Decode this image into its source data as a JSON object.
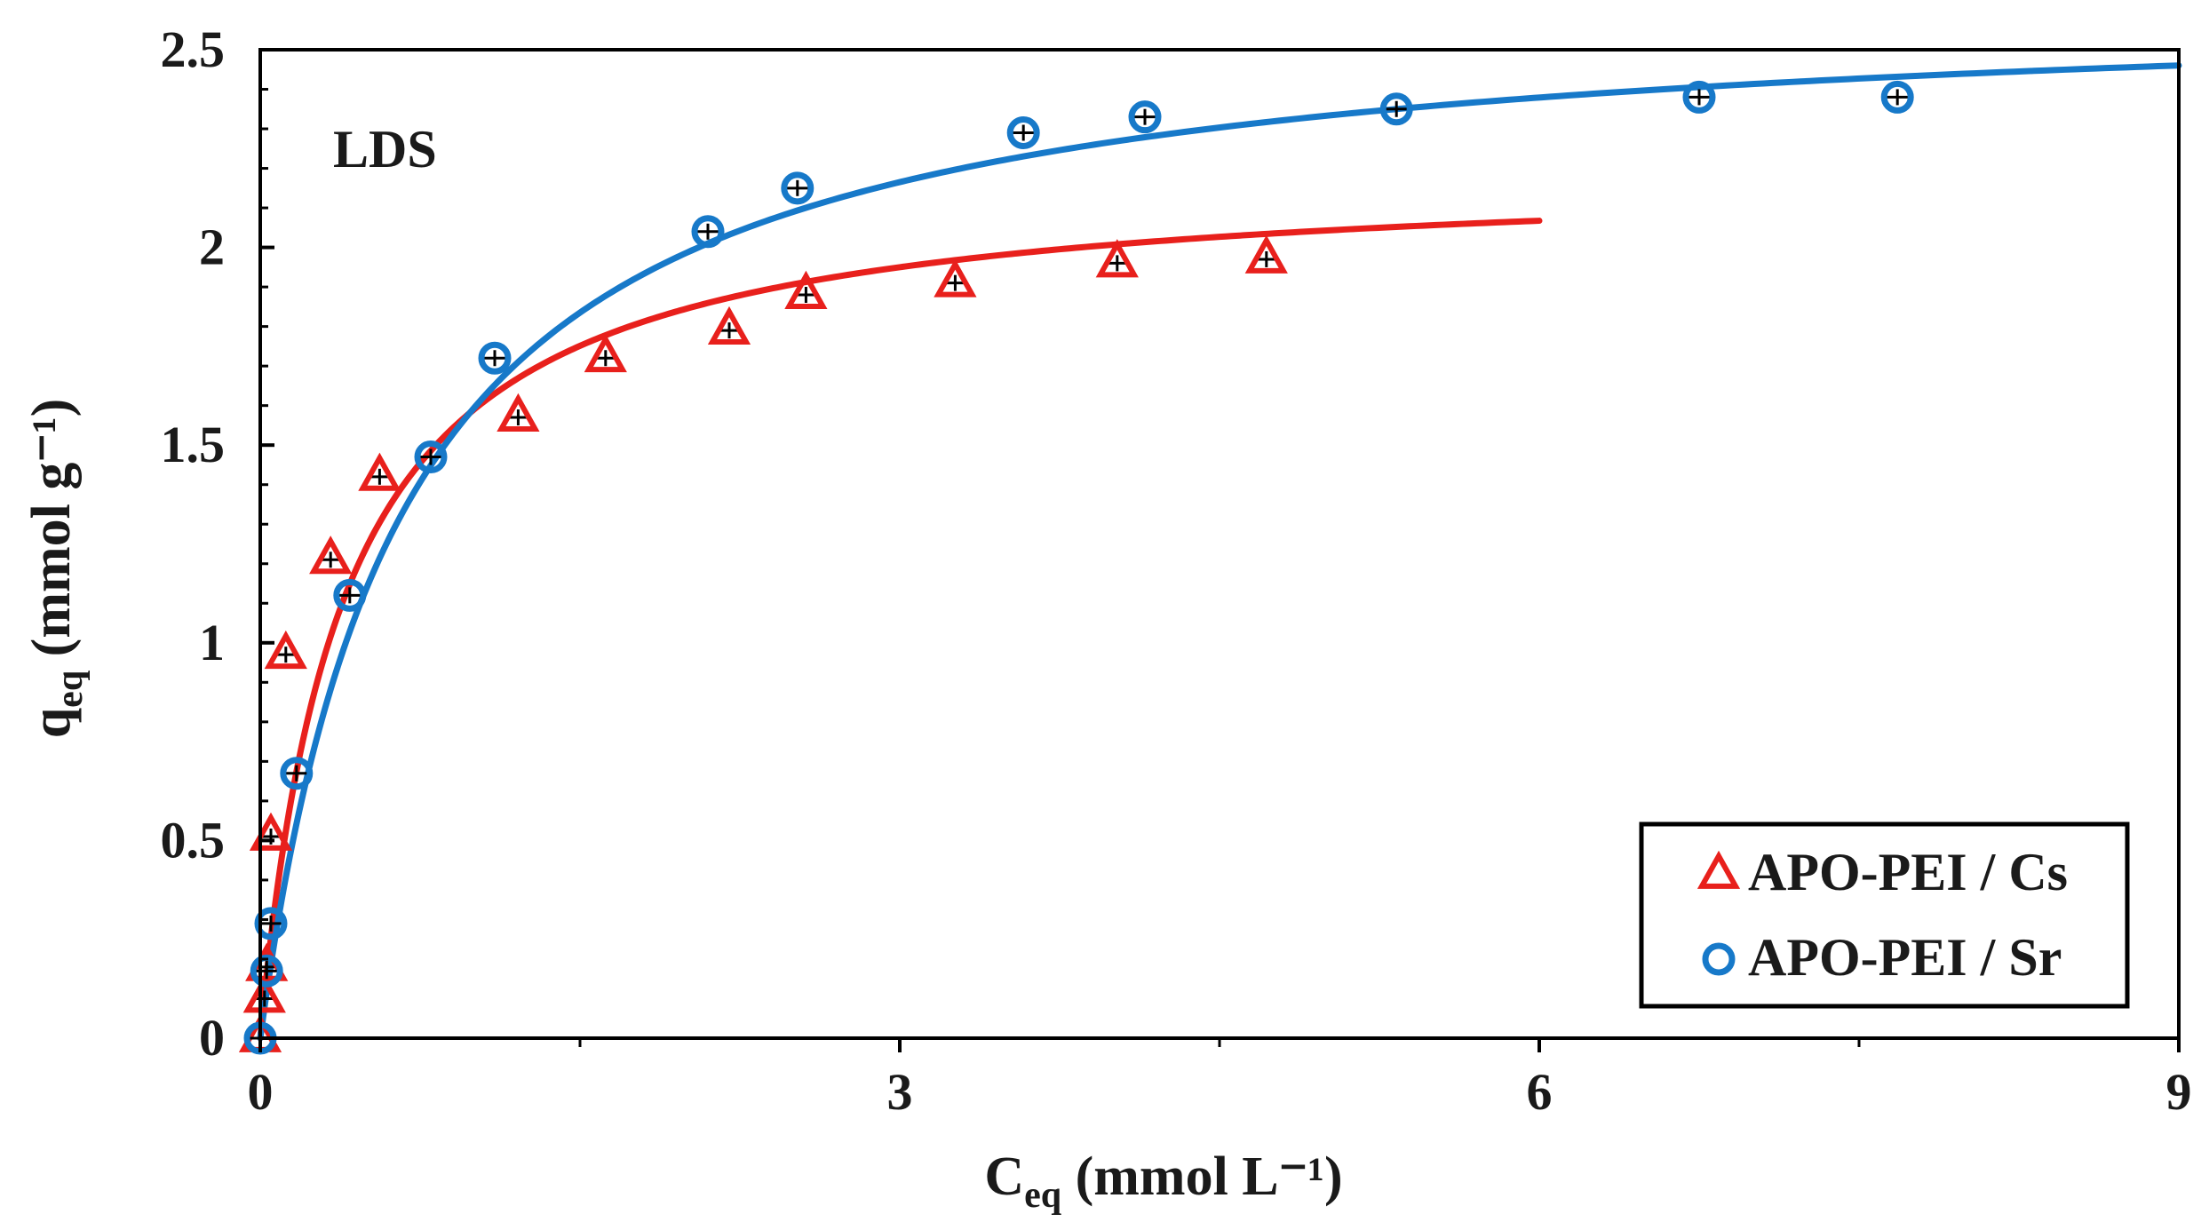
{
  "chart_data": {
    "type": "scatter",
    "annotation": "LDS",
    "xlabel": {
      "main": "C",
      "sub": "eq",
      "rest": " (mmol  L⁻¹)"
    },
    "ylabel": {
      "main": "q",
      "sub": "eq",
      "rest": " (mmol g⁻¹)"
    },
    "xlim": [
      0,
      9
    ],
    "ylim": [
      0,
      2.5
    ],
    "x_ticks": [
      0,
      3,
      6,
      9
    ],
    "x_tick_labels": [
      "0",
      "3",
      "6",
      "9"
    ],
    "x_minor_ticks": [
      1.5,
      4.5,
      7.5
    ],
    "y_ticks": [
      0,
      0.5,
      1,
      1.5,
      2,
      2.5
    ],
    "y_tick_labels": [
      "0",
      "0.5",
      "1",
      "1.5",
      "2",
      "2.5"
    ],
    "y_minor_ticks": [
      0.1,
      0.2,
      0.3,
      0.4,
      0.6,
      0.7,
      0.8,
      0.9,
      1.1,
      1.2,
      1.3,
      1.4,
      1.6,
      1.7,
      1.8,
      1.9,
      2.1,
      2.2,
      2.3,
      2.4
    ],
    "grid": false,
    "legend_position": "bottom-right",
    "series": [
      {
        "name": "APO-PEI / Cs",
        "marker": "triangle",
        "color": "#e8201c",
        "points": [
          {
            "x": 0.0,
            "y": 0.0
          },
          {
            "x": 0.02,
            "y": 0.1
          },
          {
            "x": 0.03,
            "y": 0.18
          },
          {
            "x": 0.05,
            "y": 0.51
          },
          {
            "x": 0.12,
            "y": 0.97
          },
          {
            "x": 0.33,
            "y": 1.21
          },
          {
            "x": 0.56,
            "y": 1.42
          },
          {
            "x": 1.21,
            "y": 1.57
          },
          {
            "x": 1.62,
            "y": 1.72
          },
          {
            "x": 2.2,
            "y": 1.79
          },
          {
            "x": 2.56,
            "y": 1.88
          },
          {
            "x": 3.26,
            "y": 1.91
          },
          {
            "x": 4.02,
            "y": 1.96
          },
          {
            "x": 4.72,
            "y": 1.97
          }
        ],
        "fit": {
          "model": "langmuir",
          "qmax": 2.2,
          "K": 2.6,
          "x_range": [
            0,
            6
          ]
        }
      },
      {
        "name": "APO-PEI / Sr",
        "marker": "circle",
        "color": "#1779c9",
        "points": [
          {
            "x": 0.0,
            "y": 0.0
          },
          {
            "x": 0.03,
            "y": 0.17
          },
          {
            "x": 0.05,
            "y": 0.29
          },
          {
            "x": 0.17,
            "y": 0.67
          },
          {
            "x": 0.42,
            "y": 1.12
          },
          {
            "x": 0.8,
            "y": 1.47
          },
          {
            "x": 1.1,
            "y": 1.72
          },
          {
            "x": 2.1,
            "y": 2.04
          },
          {
            "x": 2.52,
            "y": 2.15
          },
          {
            "x": 3.58,
            "y": 2.29
          },
          {
            "x": 4.15,
            "y": 2.33
          },
          {
            "x": 5.33,
            "y": 2.35
          },
          {
            "x": 6.75,
            "y": 2.38
          },
          {
            "x": 7.68,
            "y": 2.38
          }
        ],
        "fit": {
          "model": "langmuir",
          "qmax": 2.64,
          "K": 1.52,
          "x_range": [
            0,
            9
          ]
        }
      }
    ]
  }
}
